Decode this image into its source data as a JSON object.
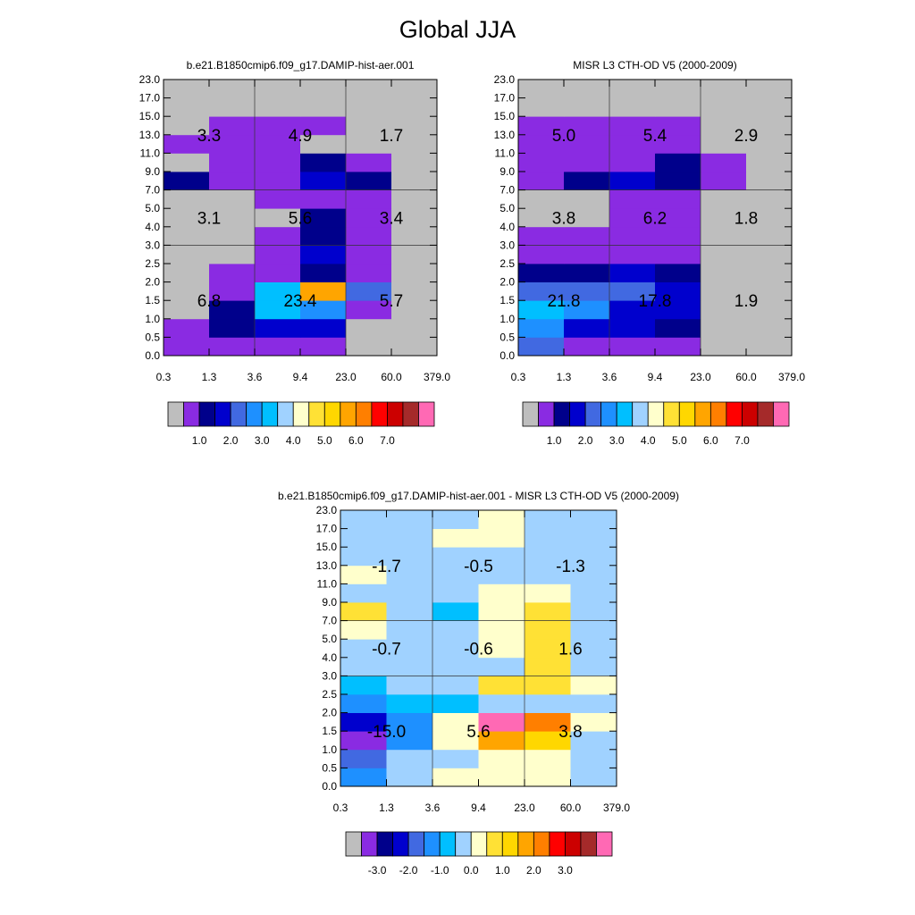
{
  "figure": {
    "title": "Global JJA"
  },
  "palette": [
    "#bebebe",
    "#8a2be2",
    "#00008b",
    "#0000cd",
    "#4169e1",
    "#1e90ff",
    "#00bfff",
    "#a0d2ff",
    "#ffffcc",
    "#ffe135",
    "#ffd700",
    "#ffa500",
    "#ff7f00",
    "#ff0000",
    "#cc0000",
    "#a52a2a",
    "#ff69b4"
  ],
  "chart_data": [
    {
      "type": "heatmap",
      "title": "b.e21.B1850cmip6.f09_g17.DAMIP-hist-aer.001",
      "xlabel": "",
      "ylabel": "",
      "x_ticks": [
        "0.3",
        "1.3",
        "3.6",
        "9.4",
        "23.0",
        "60.0",
        "379.0"
      ],
      "y_ticks": [
        "0.0",
        "0.5",
        "1.0",
        "1.5",
        "2.0",
        "2.5",
        "3.0",
        "4.0",
        "5.0",
        "7.0",
        "9.0",
        "11.0",
        "13.0",
        "15.0",
        "17.0",
        "23.0"
      ],
      "cells_note": "rows bottom-to-top (15 height bins), columns left-to-right (6 optical-depth bins); values are palette indices",
      "cells": [
        [
          1,
          1,
          1,
          1,
          0,
          0
        ],
        [
          1,
          2,
          3,
          3,
          0,
          0
        ],
        [
          0,
          2,
          6,
          5,
          1,
          0
        ],
        [
          0,
          1,
          6,
          11,
          4,
          0
        ],
        [
          0,
          1,
          1,
          2,
          1,
          0
        ],
        [
          0,
          0,
          1,
          3,
          1,
          0
        ],
        [
          0,
          0,
          1,
          2,
          1,
          0
        ],
        [
          0,
          0,
          0,
          2,
          1,
          0
        ],
        [
          0,
          0,
          1,
          1,
          1,
          0
        ],
        [
          2,
          1,
          1,
          3,
          2,
          0
        ],
        [
          0,
          1,
          1,
          2,
          1,
          0
        ],
        [
          1,
          1,
          1,
          0,
          0,
          0
        ],
        [
          0,
          1,
          1,
          1,
          0,
          0
        ],
        [
          0,
          0,
          0,
          0,
          0,
          0
        ],
        [
          0,
          0,
          0,
          0,
          0,
          0
        ]
      ],
      "block_labels": [
        {
          "row": 0,
          "col": 0,
          "text": "6.8"
        },
        {
          "row": 0,
          "col": 1,
          "text": "23.4"
        },
        {
          "row": 0,
          "col": 2,
          "text": "5.7"
        },
        {
          "row": 1,
          "col": 0,
          "text": "3.1"
        },
        {
          "row": 1,
          "col": 1,
          "text": "5.6"
        },
        {
          "row": 1,
          "col": 2,
          "text": "3.4"
        },
        {
          "row": 2,
          "col": 0,
          "text": "3.3"
        },
        {
          "row": 2,
          "col": 1,
          "text": "4.9"
        },
        {
          "row": 2,
          "col": 2,
          "text": "1.7"
        }
      ],
      "colorbar_labels": [
        "1.0",
        "2.0",
        "3.0",
        "4.0",
        "5.0",
        "6.0",
        "7.0"
      ]
    },
    {
      "type": "heatmap",
      "title": "MISR L3 CTH-OD V5 (2000-2009)",
      "xlabel": "",
      "ylabel": "",
      "x_ticks": [
        "0.3",
        "1.3",
        "3.6",
        "9.4",
        "23.0",
        "60.0",
        "379.0"
      ],
      "y_ticks": [
        "0.0",
        "0.5",
        "1.0",
        "1.5",
        "2.0",
        "2.5",
        "3.0",
        "4.0",
        "5.0",
        "7.0",
        "9.0",
        "11.0",
        "13.0",
        "15.0",
        "17.0",
        "23.0"
      ],
      "cells": [
        [
          4,
          1,
          1,
          1,
          0,
          0
        ],
        [
          5,
          3,
          3,
          2,
          0,
          0
        ],
        [
          6,
          5,
          3,
          3,
          0,
          0
        ],
        [
          4,
          4,
          4,
          3,
          0,
          0
        ],
        [
          2,
          2,
          3,
          2,
          0,
          0
        ],
        [
          1,
          1,
          1,
          1,
          0,
          0
        ],
        [
          1,
          1,
          1,
          1,
          0,
          0
        ],
        [
          0,
          0,
          1,
          1,
          0,
          0
        ],
        [
          0,
          0,
          1,
          1,
          0,
          0
        ],
        [
          1,
          2,
          3,
          2,
          1,
          0
        ],
        [
          1,
          1,
          1,
          2,
          1,
          0
        ],
        [
          1,
          1,
          1,
          1,
          0,
          0
        ],
        [
          1,
          1,
          1,
          1,
          0,
          0
        ],
        [
          0,
          0,
          0,
          0,
          0,
          0
        ],
        [
          0,
          0,
          0,
          0,
          0,
          0
        ]
      ],
      "block_labels": [
        {
          "row": 0,
          "col": 0,
          "text": "21.8"
        },
        {
          "row": 0,
          "col": 1,
          "text": "17.8"
        },
        {
          "row": 0,
          "col": 2,
          "text": "1.9"
        },
        {
          "row": 1,
          "col": 0,
          "text": "3.8"
        },
        {
          "row": 1,
          "col": 1,
          "text": "6.2"
        },
        {
          "row": 1,
          "col": 2,
          "text": "1.8"
        },
        {
          "row": 2,
          "col": 0,
          "text": "5.0"
        },
        {
          "row": 2,
          "col": 1,
          "text": "5.4"
        },
        {
          "row": 2,
          "col": 2,
          "text": "2.9"
        }
      ],
      "colorbar_labels": [
        "1.0",
        "2.0",
        "3.0",
        "4.0",
        "5.0",
        "6.0",
        "7.0"
      ]
    },
    {
      "type": "heatmap",
      "title": "b.e21.B1850cmip6.f09_g17.DAMIP-hist-aer.001 - MISR L3 CTH-OD V5 (2000-2009)",
      "xlabel": "",
      "ylabel": "",
      "x_ticks": [
        "0.3",
        "1.3",
        "3.6",
        "9.4",
        "23.0",
        "60.0",
        "379.0"
      ],
      "y_ticks": [
        "0.0",
        "0.5",
        "1.0",
        "1.5",
        "2.0",
        "2.5",
        "3.0",
        "4.0",
        "5.0",
        "7.0",
        "9.0",
        "11.0",
        "13.0",
        "15.0",
        "17.0",
        "23.0"
      ],
      "cells": [
        [
          5,
          7,
          8,
          8,
          8,
          7
        ],
        [
          4,
          7,
          7,
          8,
          8,
          7
        ],
        [
          1,
          5,
          8,
          11,
          10,
          7
        ],
        [
          3,
          5,
          8,
          16,
          12,
          8
        ],
        [
          5,
          6,
          6,
          7,
          7,
          7
        ],
        [
          6,
          7,
          7,
          9,
          9,
          8
        ],
        [
          7,
          7,
          7,
          7,
          9,
          7
        ],
        [
          7,
          7,
          7,
          8,
          9,
          7
        ],
        [
          8,
          7,
          7,
          8,
          9,
          7
        ],
        [
          9,
          7,
          6,
          8,
          9,
          7
        ],
        [
          7,
          7,
          7,
          8,
          8,
          7
        ],
        [
          8,
          7,
          7,
          7,
          7,
          7
        ],
        [
          7,
          7,
          7,
          7,
          7,
          7
        ],
        [
          7,
          7,
          8,
          8,
          7,
          7
        ],
        [
          7,
          7,
          7,
          8,
          7,
          7
        ]
      ],
      "block_labels": [
        {
          "row": 0,
          "col": 0,
          "text": "-15.0"
        },
        {
          "row": 0,
          "col": 1,
          "text": "5.6"
        },
        {
          "row": 0,
          "col": 2,
          "text": "3.8"
        },
        {
          "row": 1,
          "col": 0,
          "text": "-0.7"
        },
        {
          "row": 1,
          "col": 1,
          "text": "-0.6"
        },
        {
          "row": 1,
          "col": 2,
          "text": "1.6"
        },
        {
          "row": 2,
          "col": 0,
          "text": "-1.7"
        },
        {
          "row": 2,
          "col": 1,
          "text": "-0.5"
        },
        {
          "row": 2,
          "col": 2,
          "text": "-1.3"
        }
      ],
      "colorbar_labels": [
        "-3.0",
        "-2.0",
        "-1.0",
        "0.0",
        "1.0",
        "2.0",
        "3.0"
      ]
    }
  ]
}
